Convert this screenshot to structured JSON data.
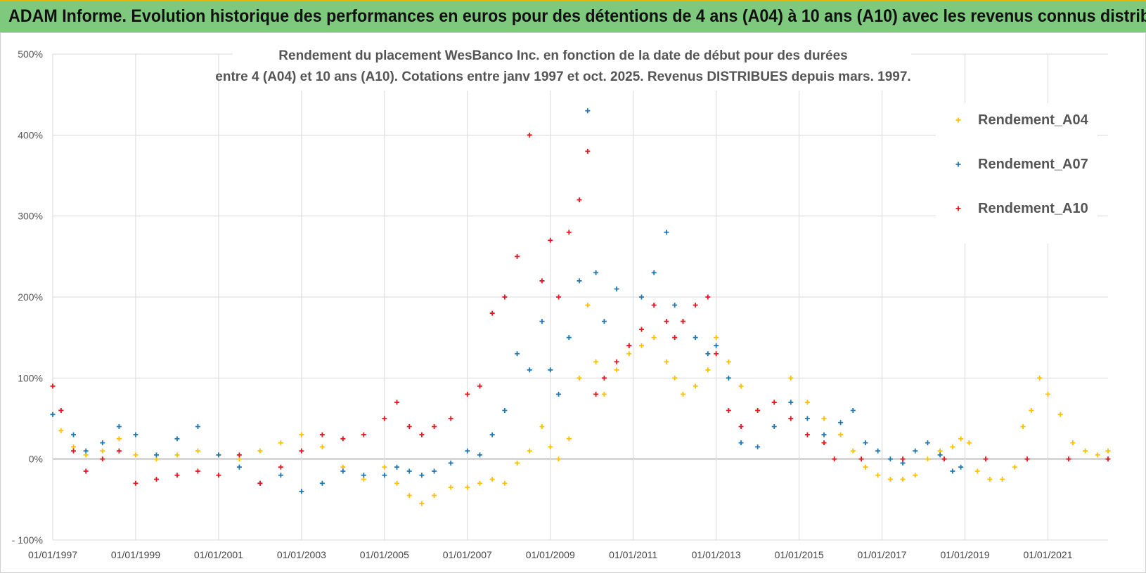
{
  "banner": {
    "title": "ADAM Informe. Evolution historique des performances en euros pour des détentions de 4 ans (A04) à 10 ans (A10) avec les revenus connus distribués"
  },
  "colors": {
    "banner_bg": "#7fc97f",
    "A04": "#ffc000",
    "A07": "#1f77b4",
    "A10": "#e8141e"
  },
  "chart_data": {
    "type": "scatter",
    "title": "Rendement du placement WesBanco Inc. en fonction de la date de début pour des durées",
    "subtitle": "entre 4 (A04) et 10 ans (A10).  Cotations entre janv 1997 et oct. 2025.  Revenus DISTRIBUES depuis mars. 1997.",
    "xlabel": "",
    "ylabel": "",
    "xlim": [
      1997.0,
      2022.45
    ],
    "ylim": [
      -100,
      500
    ],
    "grid": true,
    "legend_position": "right",
    "y_ticks": [
      "- 100%",
      "0%",
      "100%",
      "200%",
      "300%",
      "400%",
      "500%"
    ],
    "x_ticks": [
      "01/01/1997",
      "01/01/1999",
      "01/01/2001",
      "01/01/2003",
      "01/01/2005",
      "01/01/2007",
      "01/01/2009",
      "01/01/2011",
      "01/01/2013",
      "01/01/2015",
      "01/01/2017",
      "01/01/2019",
      "01/01/2021"
    ],
    "series": [
      {
        "name": "Rendement_A04",
        "x": [
          1997.0,
          1997.2,
          1997.5,
          1997.8,
          1998.2,
          1998.6,
          1999.0,
          1999.5,
          2000.0,
          2000.5,
          2001.0,
          2001.5,
          2002.0,
          2002.5,
          2003.0,
          2003.5,
          2004.0,
          2004.5,
          2005.0,
          2005.3,
          2005.6,
          2005.9,
          2006.2,
          2006.6,
          2007.0,
          2007.3,
          2007.6,
          2007.9,
          2008.2,
          2008.5,
          2008.8,
          2009.0,
          2009.2,
          2009.45,
          2009.7,
          2009.9,
          2010.1,
          2010.3,
          2010.6,
          2010.9,
          2011.2,
          2011.5,
          2011.8,
          2012.0,
          2012.2,
          2012.5,
          2012.8,
          2013.0,
          2013.3,
          2013.6,
          2014.0,
          2014.4,
          2014.8,
          2015.2,
          2015.6,
          2016.0,
          2016.3,
          2016.6,
          2016.9,
          2017.2,
          2017.5,
          2017.8,
          2018.1,
          2018.4,
          2018.7,
          2018.9,
          2019.1,
          2019.3,
          2019.6,
          2019.9,
          2020.2,
          2020.4,
          2020.6,
          2020.8,
          2021.0,
          2021.3,
          2021.6,
          2021.9,
          2022.2,
          2022.45
        ],
        "values": [
          55,
          35,
          15,
          5,
          10,
          25,
          5,
          0,
          5,
          10,
          5,
          0,
          10,
          20,
          30,
          15,
          -10,
          -25,
          -10,
          -30,
          -45,
          -55,
          -45,
          -35,
          -35,
          -30,
          -25,
          -30,
          -5,
          10,
          40,
          15,
          0,
          25,
          100,
          190,
          120,
          80,
          110,
          130,
          140,
          150,
          120,
          100,
          80,
          90,
          110,
          150,
          120,
          90,
          60,
          70,
          100,
          70,
          50,
          30,
          10,
          -10,
          -20,
          -25,
          -25,
          -20,
          0,
          10,
          15,
          25,
          20,
          -15,
          -25,
          -25,
          -10,
          40,
          60,
          100,
          80,
          55,
          20,
          10,
          5,
          10
        ]
      },
      {
        "name": "Rendement_A07",
        "x": [
          1997.0,
          1997.2,
          1997.5,
          1997.8,
          1998.2,
          1998.6,
          1999.0,
          1999.5,
          2000.0,
          2000.5,
          2001.0,
          2001.5,
          2002.0,
          2002.5,
          2003.0,
          2003.5,
          2004.0,
          2004.5,
          2005.0,
          2005.3,
          2005.6,
          2005.9,
          2006.2,
          2006.6,
          2007.0,
          2007.3,
          2007.6,
          2007.9,
          2008.2,
          2008.5,
          2008.8,
          2009.0,
          2009.2,
          2009.45,
          2009.7,
          2009.9,
          2010.1,
          2010.3,
          2010.6,
          2010.9,
          2011.2,
          2011.5,
          2011.8,
          2012.0,
          2012.2,
          2012.5,
          2012.8,
          2013.0,
          2013.3,
          2013.6,
          2014.0,
          2014.4,
          2014.8,
          2015.2,
          2015.6,
          2016.0,
          2016.3,
          2016.6,
          2016.9,
          2017.2,
          2017.5,
          2017.8,
          2018.1,
          2018.4,
          2018.7,
          2018.9
        ],
        "values": [
          55,
          60,
          30,
          10,
          20,
          40,
          30,
          5,
          25,
          40,
          5,
          -10,
          -30,
          -20,
          -40,
          -30,
          -15,
          -20,
          -20,
          -10,
          -15,
          -20,
          -15,
          -5,
          10,
          5,
          30,
          60,
          130,
          110,
          170,
          110,
          80,
          150,
          220,
          430,
          230,
          170,
          210,
          140,
          200,
          230,
          280,
          190,
          170,
          150,
          130,
          140,
          100,
          20,
          15,
          40,
          70,
          50,
          30,
          45,
          60,
          20,
          10,
          0,
          -5,
          10,
          20,
          5,
          -15,
          -10
        ]
      },
      {
        "name": "Rendement_A10",
        "x": [
          1997.0,
          1997.2,
          1997.5,
          1997.8,
          1998.2,
          1998.6,
          1999.0,
          1999.5,
          2000.0,
          2000.5,
          2001.0,
          2001.5,
          2002.0,
          2002.5,
          2003.0,
          2003.5,
          2004.0,
          2004.5,
          2005.0,
          2005.3,
          2005.6,
          2005.9,
          2006.2,
          2006.6,
          2007.0,
          2007.3,
          2007.6,
          2007.9,
          2008.2,
          2008.5,
          2008.8,
          2009.0,
          2009.2,
          2009.45,
          2009.7,
          2009.9,
          2010.1,
          2010.3,
          2010.6,
          2010.9,
          2011.2,
          2011.5,
          2011.8,
          2012.0,
          2012.2,
          2012.5,
          2012.8,
          2013.0,
          2013.3,
          2013.6,
          2014.0,
          2014.4,
          2014.8,
          2015.2,
          2015.6,
          2015.85,
          2016.5,
          2017.5,
          2018.5,
          2019.5,
          2020.5,
          2021.5,
          2022.45
        ],
        "values": [
          90,
          60,
          10,
          -15,
          0,
          10,
          -30,
          -25,
          -20,
          -15,
          -20,
          5,
          -30,
          -10,
          10,
          30,
          25,
          30,
          50,
          70,
          40,
          30,
          40,
          50,
          80,
          90,
          180,
          200,
          250,
          400,
          220,
          270,
          200,
          280,
          320,
          380,
          80,
          100,
          120,
          140,
          160,
          190,
          170,
          150,
          170,
          190,
          200,
          130,
          60,
          40,
          60,
          70,
          50,
          30,
          20,
          0,
          0,
          0,
          0,
          0,
          0,
          0,
          0
        ]
      }
    ]
  }
}
